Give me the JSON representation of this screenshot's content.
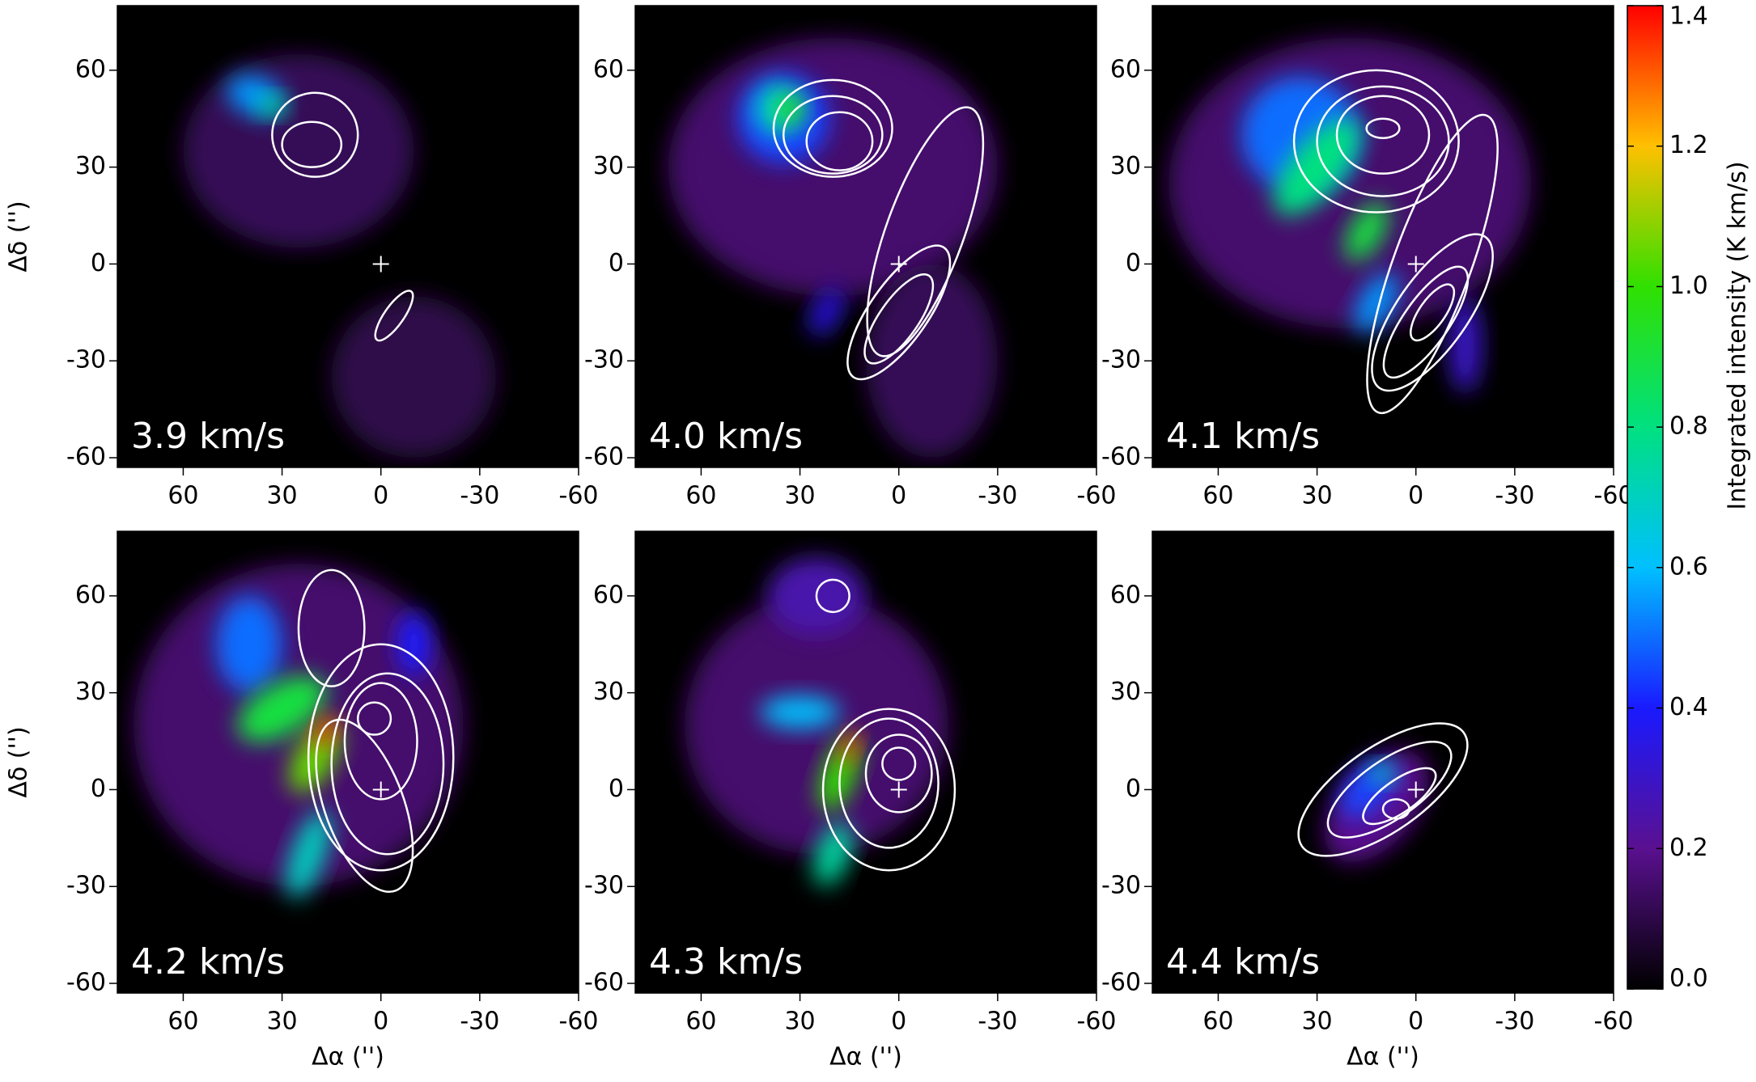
{
  "chart_data": [
    {
      "type": "heatmap",
      "annotation": "3.9 km/s",
      "xlim": [
        80,
        -60
      ],
      "ylim": [
        -63,
        80
      ],
      "xticks": [
        60,
        30,
        0,
        -30,
        -60
      ],
      "yticks": [
        -60,
        -30,
        0,
        30,
        60
      ],
      "ylabel": "Δδ ('')"
    },
    {
      "type": "heatmap",
      "annotation": "4.0 km/s",
      "xlim": [
        80,
        -60
      ],
      "ylim": [
        -63,
        80
      ],
      "xticks": [
        60,
        30,
        0,
        -30,
        -60
      ],
      "yticks": [
        -60,
        -30,
        0,
        30,
        60
      ]
    },
    {
      "type": "heatmap",
      "annotation": "4.1 km/s",
      "xlim": [
        80,
        -60
      ],
      "ylim": [
        -63,
        80
      ],
      "xticks": [
        60,
        30,
        0,
        -30,
        -60
      ],
      "yticks": [
        -60,
        -30,
        0,
        30,
        60
      ]
    },
    {
      "type": "heatmap",
      "annotation": "4.2 km/s",
      "xlim": [
        80,
        -60
      ],
      "ylim": [
        -63,
        80
      ],
      "xticks": [
        60,
        30,
        0,
        -30,
        -60
      ],
      "yticks": [
        -60,
        -30,
        0,
        30,
        60
      ],
      "ylabel": "Δδ ('')",
      "xlabel": "Δα ('')"
    },
    {
      "type": "heatmap",
      "annotation": "4.3 km/s",
      "xlim": [
        80,
        -60
      ],
      "ylim": [
        -63,
        80
      ],
      "xticks": [
        60,
        30,
        0,
        -30,
        -60
      ],
      "yticks": [
        -60,
        -30,
        0,
        30,
        60
      ],
      "xlabel": "Δα ('')"
    },
    {
      "type": "heatmap",
      "annotation": "4.4 km/s",
      "xlim": [
        80,
        -60
      ],
      "ylim": [
        -63,
        80
      ],
      "xticks": [
        60,
        30,
        0,
        -30,
        -60
      ],
      "yticks": [
        -60,
        -30,
        0,
        30,
        60
      ],
      "xlabel": "Δα ('')"
    },
    {
      "type": "colorbar",
      "title": "Integrated intensity (K km/s)",
      "ylim": [
        0,
        1.4
      ],
      "yticks": [
        {
          "value": 0,
          "label": "0.0"
        },
        0.2,
        0.4,
        0.6,
        0.8,
        {
          "value": 1,
          "label": "1.0"
        },
        1.2,
        1.4
      ],
      "colors": [
        "#000000",
        "#5a1090",
        "#1a1aff",
        "#00c0ff",
        "#00e080",
        "#30e000",
        "#ffc000",
        "#ff0000"
      ]
    }
  ]
}
